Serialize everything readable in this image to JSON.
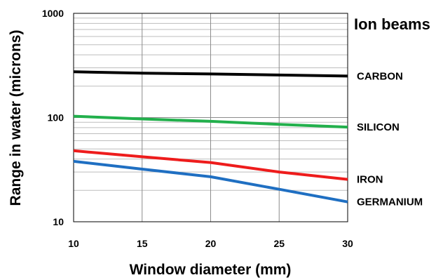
{
  "chart_data": {
    "type": "line",
    "title": "",
    "legend_title": "Ion beams",
    "xlabel": "Window diameter (mm)",
    "ylabel": "Range in water (microns)",
    "x": [
      10,
      15,
      20,
      25,
      30
    ],
    "x_ticks": [
      "10",
      "15",
      "20",
      "25",
      "30"
    ],
    "xlim": [
      10,
      30
    ],
    "y_scale": "log",
    "y_ticks": [
      "10",
      "100",
      "1000"
    ],
    "ylim": [
      10,
      1000
    ],
    "grid": true,
    "legend_placement": "right, labels beside line ends",
    "series": [
      {
        "name": "CARBON",
        "color": "#000000",
        "values": [
          275,
          267,
          262,
          256,
          250
        ]
      },
      {
        "name": "SILICON",
        "color": "#22b04c",
        "values": [
          103,
          97,
          92,
          86,
          81
        ]
      },
      {
        "name": "IRON",
        "color": "#ee1c1c",
        "values": [
          48,
          42,
          37,
          30,
          25.5
        ]
      },
      {
        "name": "GERMANIUM",
        "color": "#1f6fc2",
        "values": [
          38,
          32,
          27,
          20.5,
          15.5
        ]
      }
    ]
  }
}
